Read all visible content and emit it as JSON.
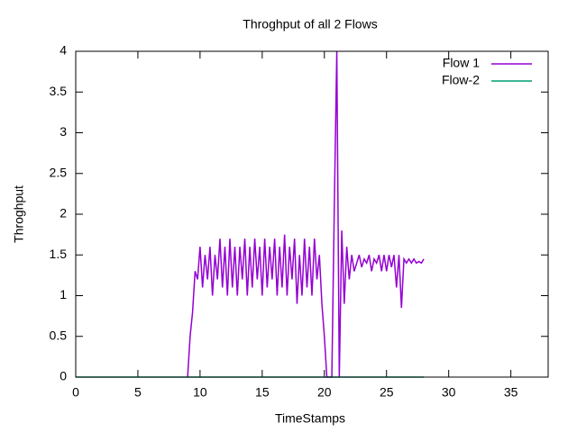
{
  "chart_data": {
    "type": "line",
    "title": "Throghput of all 2 Flows",
    "x_label": "TimeStamps",
    "y_label": "Throghput",
    "xlim": [
      0,
      38
    ],
    "xticks": [
      0,
      5,
      10,
      15,
      20,
      25,
      30,
      35
    ],
    "ylim": [
      0,
      4
    ],
    "yticks": [
      0,
      0.5,
      1,
      1.5,
      2,
      2.5,
      3,
      3.5,
      4
    ],
    "legend": "top-right",
    "series": [
      {
        "name": "Flow 1",
        "color": "#9400d3",
        "x": [
          9.0,
          9.2,
          9.4,
          9.6,
          9.8,
          10.0,
          10.2,
          10.4,
          10.6,
          10.8,
          11.0,
          11.2,
          11.4,
          11.6,
          11.8,
          12.0,
          12.2,
          12.4,
          12.6,
          12.8,
          13.0,
          13.2,
          13.4,
          13.6,
          13.8,
          14.0,
          14.2,
          14.4,
          14.6,
          14.8,
          15.0,
          15.2,
          15.4,
          15.6,
          15.8,
          16.0,
          16.2,
          16.4,
          16.6,
          16.8,
          17.0,
          17.2,
          17.4,
          17.6,
          17.8,
          18.0,
          18.2,
          18.4,
          18.6,
          18.8,
          19.0,
          19.2,
          19.4,
          19.6,
          19.8,
          20.0,
          20.2,
          20.4,
          20.6,
          20.8,
          21.0,
          21.2,
          21.4,
          21.6,
          21.8,
          22.0,
          22.2,
          22.4,
          22.6,
          22.8,
          23.0,
          23.2,
          23.4,
          23.6,
          23.8,
          24.0,
          24.2,
          24.4,
          24.6,
          24.8,
          25.0,
          25.2,
          25.4,
          25.6,
          25.8,
          26.0,
          26.2,
          26.4,
          26.6,
          26.8,
          27.0,
          27.2,
          27.4,
          27.6,
          27.8,
          28.0
        ],
        "values": [
          0,
          0.5,
          0.8,
          1.3,
          1.2,
          1.6,
          1.1,
          1.5,
          1.2,
          1.6,
          1.0,
          1.5,
          1.2,
          1.7,
          1.1,
          1.6,
          1.0,
          1.7,
          1.1,
          1.6,
          1.0,
          1.6,
          1.2,
          1.7,
          1.0,
          1.6,
          1.1,
          1.7,
          1.2,
          1.6,
          1.0,
          1.7,
          1.1,
          1.6,
          1.2,
          1.7,
          1.0,
          1.6,
          1.1,
          1.75,
          1.0,
          1.6,
          1.2,
          1.7,
          0.9,
          1.5,
          1.0,
          1.7,
          1.1,
          1.6,
          1.0,
          1.7,
          1.2,
          1.5,
          0.9,
          0.5,
          0,
          0,
          0,
          2.1,
          4,
          0,
          1.8,
          0.9,
          1.6,
          1.2,
          1.5,
          1.3,
          1.4,
          1.5,
          1.35,
          1.45,
          1.4,
          1.5,
          1.3,
          1.45,
          1.4,
          1.5,
          1.3,
          1.5,
          1.3,
          1.5,
          1.35,
          1.5,
          1.1,
          1.5,
          0.85,
          1.45,
          1.4,
          1.45,
          1.4,
          1.45,
          1.4,
          1.42,
          1.4,
          1.45
        ]
      },
      {
        "name": "Flow-2",
        "color": "#009e73",
        "x": [
          0,
          28
        ],
        "values": [
          0,
          0
        ]
      }
    ]
  }
}
